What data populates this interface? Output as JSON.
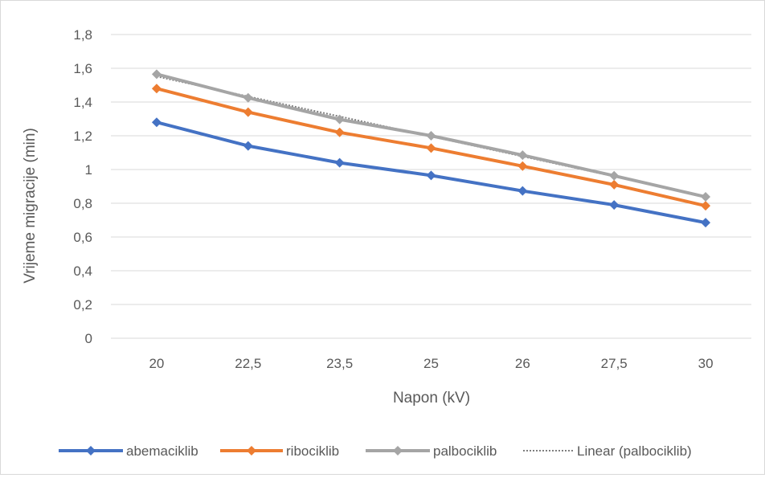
{
  "chart_data": {
    "type": "line",
    "title": "",
    "xlabel": "Napon (kV)",
    "ylabel": "Vrijeme migracije (min)",
    "categories": [
      "20",
      "22,5",
      "23,5",
      "25",
      "26",
      "27,5",
      "30"
    ],
    "ylim": [
      0,
      1.8
    ],
    "y_ticks": [
      "0",
      "0,2",
      "0,4",
      "0,6",
      "0,8",
      "1",
      "1,2",
      "1,4",
      "1,6",
      "1,8"
    ],
    "grid": true,
    "legend_position": "bottom",
    "series": [
      {
        "name": "abemaciklib",
        "color": "#4472C4",
        "values": [
          1.28,
          1.14,
          1.04,
          0.965,
          0.873,
          0.79,
          0.685
        ]
      },
      {
        "name": "ribociklib",
        "color": "#ED7D31",
        "values": [
          1.48,
          1.34,
          1.22,
          1.127,
          1.02,
          0.91,
          0.785
        ]
      },
      {
        "name": "palbociklib",
        "color": "#A5A5A5",
        "values": [
          1.565,
          1.425,
          1.297,
          1.2,
          1.085,
          0.963,
          0.838
        ]
      }
    ],
    "trendline": {
      "name": "Linear (palbociklib)",
      "color": "#A5A5A5",
      "of_series": "palbociklib"
    }
  }
}
